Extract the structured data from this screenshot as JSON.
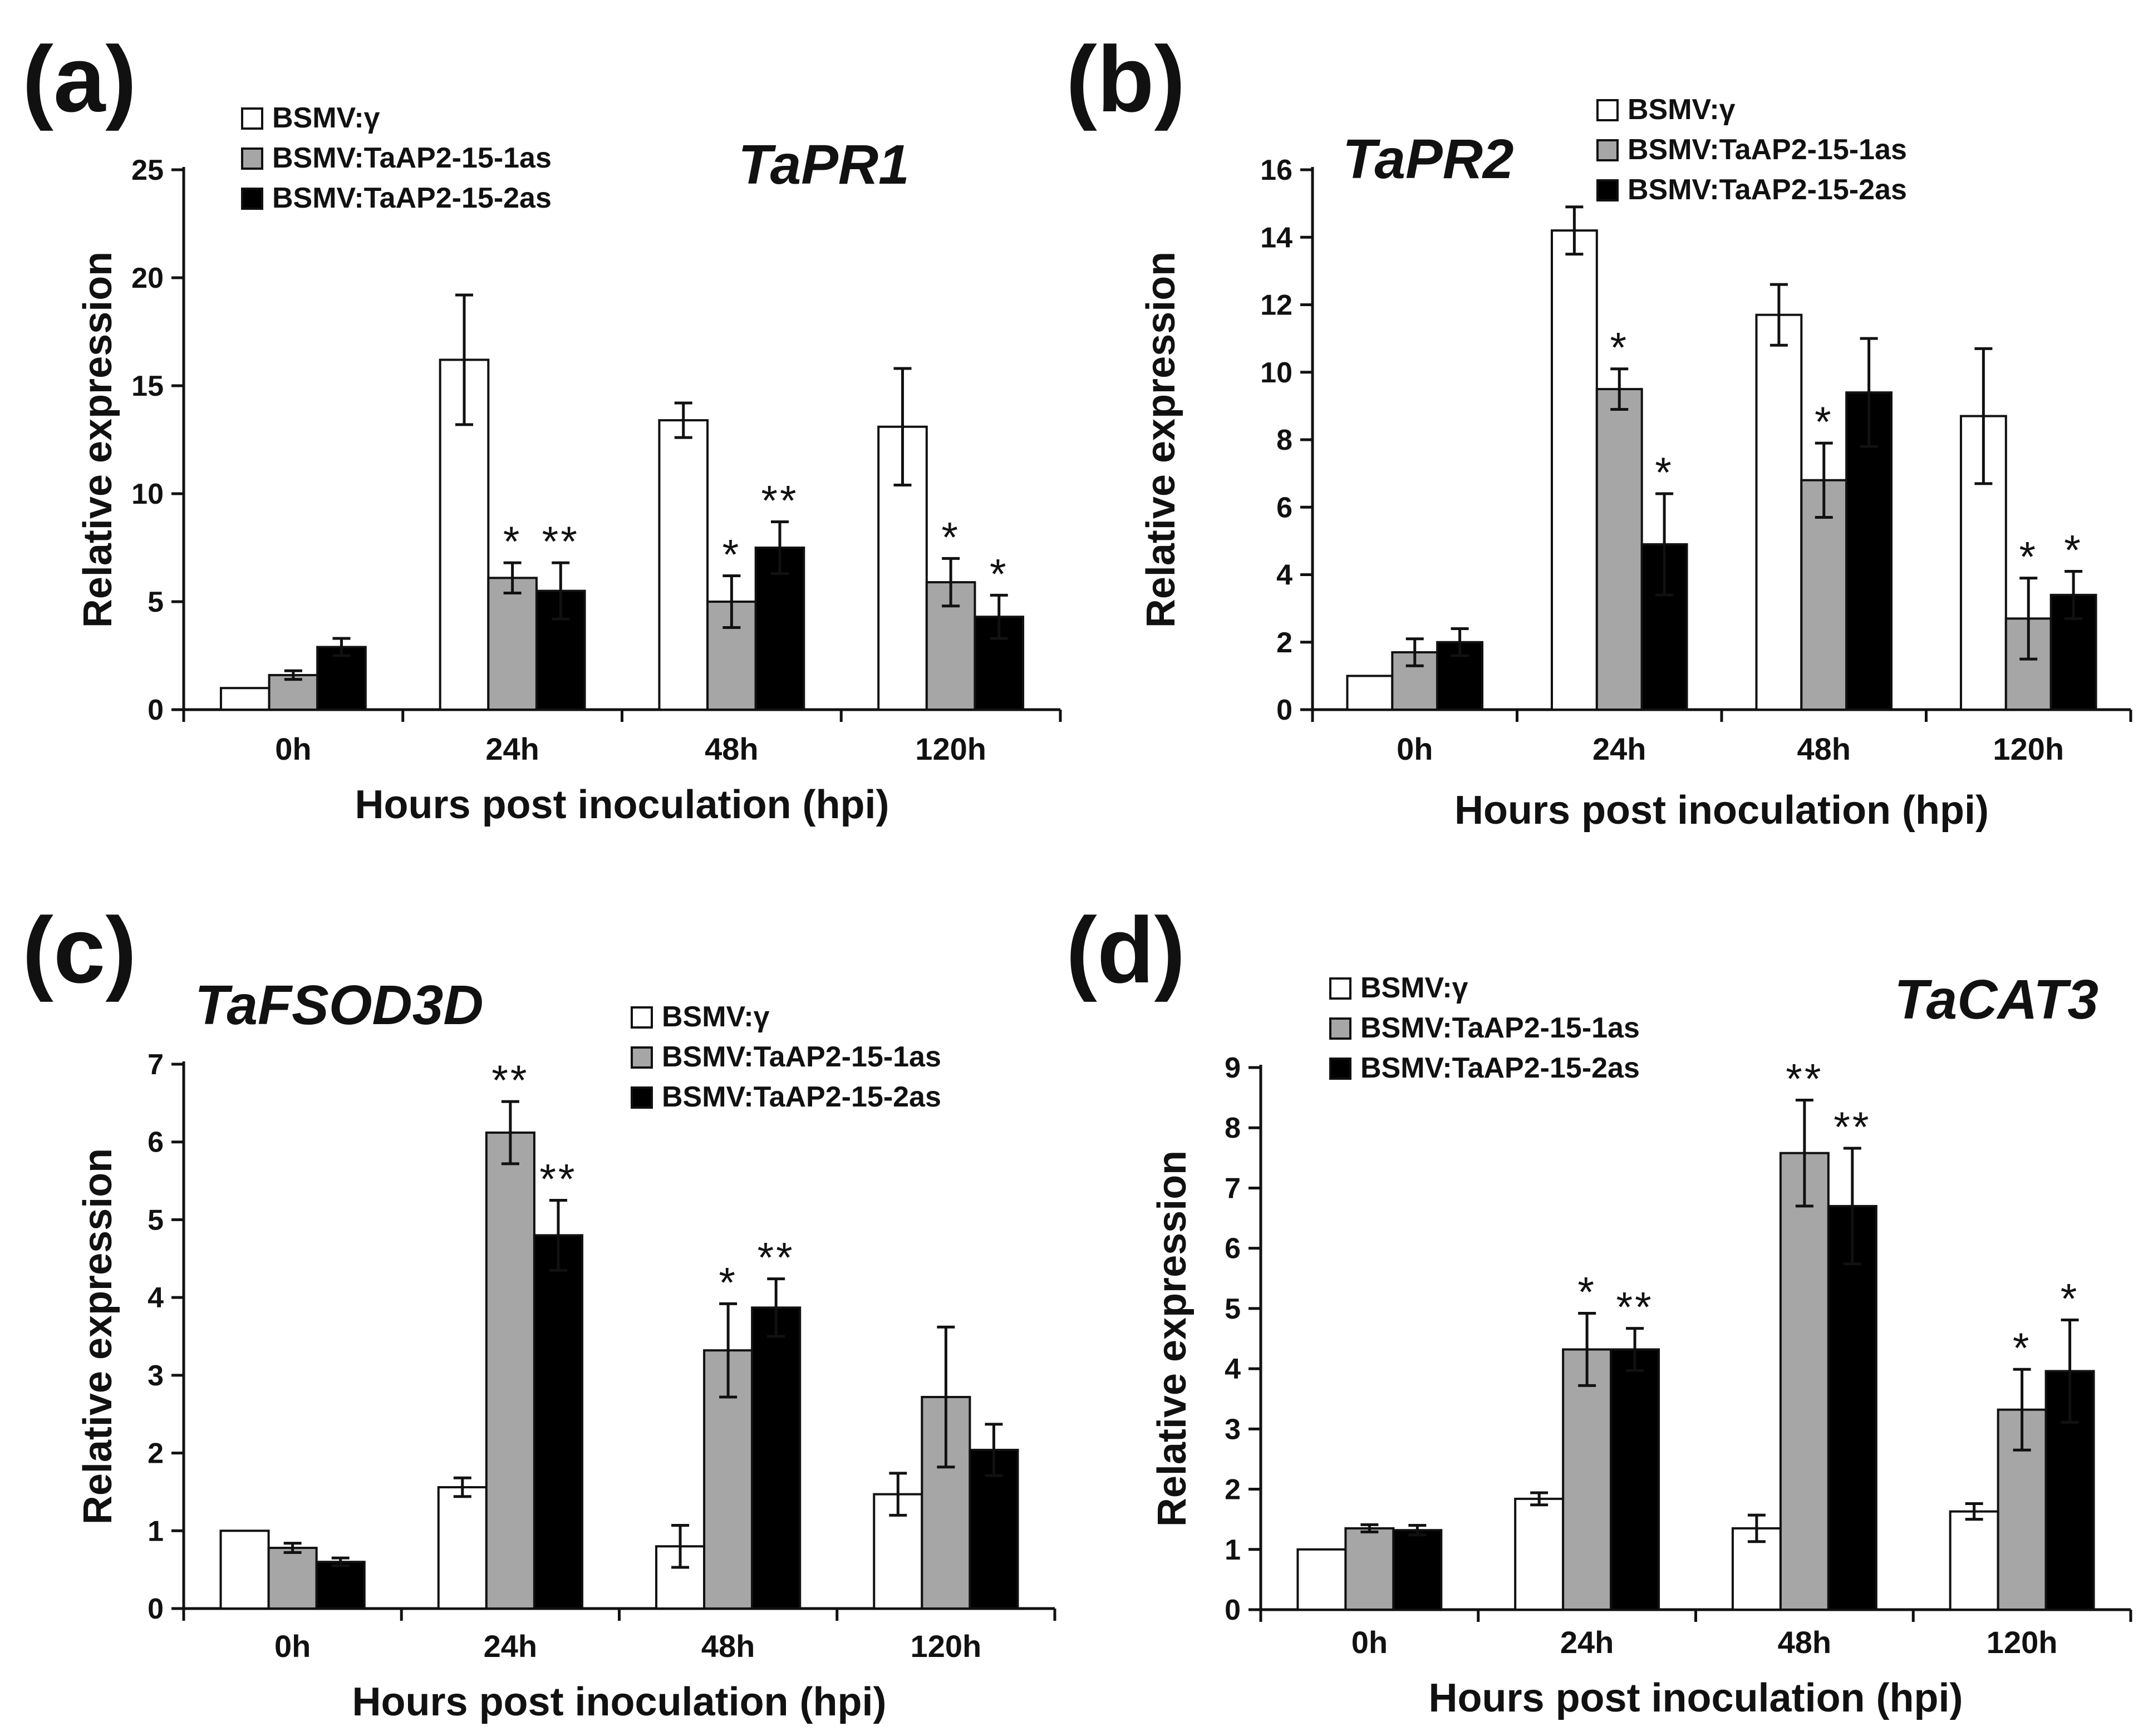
{
  "colors": {
    "series": [
      "#ffffff",
      "#a6a6a6",
      "#000000"
    ]
  },
  "legend_entries": [
    "BSMV:γ",
    "BSMV:TaAP2-15-1as",
    "BSMV:TaAP2-15-2as"
  ],
  "chart_data": [
    {
      "type": "bar",
      "panel": "(a)",
      "title": "TaPR1",
      "xlabel": "Hours post inoculation (hpi)",
      "ylabel": "Relative expression",
      "categories": [
        "0h",
        "24h",
        "48h",
        "120h"
      ],
      "ylim": [
        0,
        25
      ],
      "yticks": [
        0,
        5,
        10,
        15,
        20,
        25
      ],
      "series": [
        {
          "name": "BSMV:γ",
          "values": [
            1.0,
            16.2,
            13.4,
            13.1
          ],
          "errors": [
            0.0,
            3.0,
            0.8,
            2.7
          ],
          "sig": [
            "",
            "",
            "",
            ""
          ]
        },
        {
          "name": "BSMV:TaAP2-15-1as",
          "values": [
            1.6,
            6.1,
            5.0,
            5.9
          ],
          "errors": [
            0.2,
            0.7,
            1.2,
            1.1
          ],
          "sig": [
            "",
            "*",
            "*",
            "*"
          ]
        },
        {
          "name": "BSMV:TaAP2-15-2as",
          "values": [
            2.9,
            5.5,
            7.5,
            4.3
          ],
          "errors": [
            0.4,
            1.3,
            1.2,
            1.0
          ],
          "sig": [
            "",
            "**",
            "**",
            "*"
          ]
        }
      ]
    },
    {
      "type": "bar",
      "panel": "(b)",
      "title": "TaPR2",
      "xlabel": "Hours post inoculation (hpi)",
      "ylabel": "Relative expression",
      "categories": [
        "0h",
        "24h",
        "48h",
        "120h"
      ],
      "ylim": [
        0,
        16
      ],
      "yticks": [
        0,
        2,
        4,
        6,
        8,
        10,
        12,
        14,
        16
      ],
      "series": [
        {
          "name": "BSMV:γ",
          "values": [
            1.0,
            14.2,
            11.7,
            8.7
          ],
          "errors": [
            0.0,
            0.7,
            0.9,
            2.0
          ],
          "sig": [
            "",
            "",
            "",
            ""
          ]
        },
        {
          "name": "BSMV:TaAP2-15-1as",
          "values": [
            1.7,
            9.5,
            6.8,
            2.7
          ],
          "errors": [
            0.4,
            0.6,
            1.1,
            1.2
          ],
          "sig": [
            "",
            "*",
            "*",
            "*"
          ]
        },
        {
          "name": "BSMV:TaAP2-15-2as",
          "values": [
            2.0,
            4.9,
            9.4,
            3.4
          ],
          "errors": [
            0.4,
            1.5,
            1.6,
            0.7
          ],
          "sig": [
            "",
            "*",
            "",
            "*"
          ]
        }
      ]
    },
    {
      "type": "bar",
      "panel": "(c)",
      "title": "TaFSOD3D",
      "xlabel": "Hours post inoculation (hpi)",
      "ylabel": "Relative expression",
      "categories": [
        "0h",
        "24h",
        "48h",
        "120h"
      ],
      "ylim": [
        0,
        7
      ],
      "yticks": [
        0,
        1,
        2,
        3,
        4,
        5,
        6,
        7
      ],
      "series": [
        {
          "name": "BSMV:γ",
          "values": [
            1.0,
            1.56,
            0.8,
            1.47
          ],
          "errors": [
            0.0,
            0.12,
            0.27,
            0.27
          ],
          "sig": [
            "",
            "",
            "",
            ""
          ]
        },
        {
          "name": "BSMV:TaAP2-15-1as",
          "values": [
            0.78,
            6.12,
            3.32,
            2.72
          ],
          "errors": [
            0.06,
            0.4,
            0.6,
            0.9
          ],
          "sig": [
            "",
            "**",
            "*",
            ""
          ]
        },
        {
          "name": "BSMV:TaAP2-15-2as",
          "values": [
            0.6,
            4.8,
            3.87,
            2.04
          ],
          "errors": [
            0.05,
            0.45,
            0.37,
            0.33
          ],
          "sig": [
            "",
            "**",
            "**",
            ""
          ]
        }
      ]
    },
    {
      "type": "bar",
      "panel": "(d)",
      "title": "TaCAT3",
      "xlabel": "Hours post inoculation (hpi)",
      "ylabel": "Relative expression",
      "categories": [
        "0h",
        "24h",
        "48h",
        "120h"
      ],
      "ylim": [
        0,
        9
      ],
      "yticks": [
        0,
        1,
        2,
        3,
        4,
        5,
        6,
        7,
        8,
        9
      ],
      "series": [
        {
          "name": "BSMV:γ",
          "values": [
            1.0,
            1.84,
            1.35,
            1.63
          ],
          "errors": [
            0.0,
            0.1,
            0.22,
            0.13
          ],
          "sig": [
            "",
            "",
            "",
            ""
          ]
        },
        {
          "name": "BSMV:TaAP2-15-1as",
          "values": [
            1.35,
            4.32,
            7.58,
            3.32
          ],
          "errors": [
            0.06,
            0.6,
            0.88,
            0.67
          ],
          "sig": [
            "",
            "*",
            "**",
            "*"
          ]
        },
        {
          "name": "BSMV:TaAP2-15-2as",
          "values": [
            1.32,
            4.32,
            6.7,
            3.96
          ],
          "errors": [
            0.08,
            0.35,
            0.96,
            0.85
          ],
          "sig": [
            "",
            "**",
            "**",
            "*"
          ]
        }
      ]
    }
  ]
}
